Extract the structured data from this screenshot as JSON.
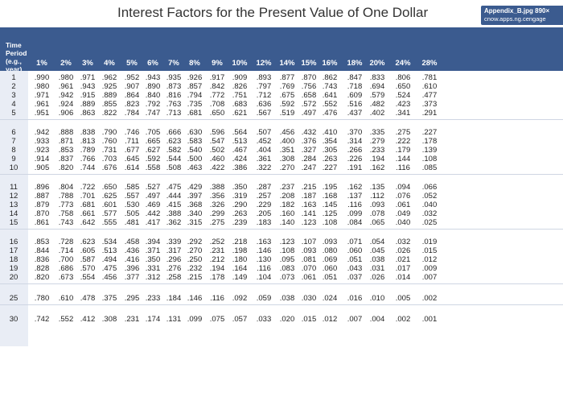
{
  "header": {
    "title": "Interest Factors for the Present Value of One Dollar",
    "badge_line1": "Appendix_B.jpg 890×",
    "badge_line2": "cnow.apps.ng.cengage",
    "period_label": "Time Period (e.g., year)"
  },
  "rates": [
    "1%",
    "2%",
    "3%",
    "4%",
    "5%",
    "6%",
    "7%",
    "8%",
    "9%",
    "10%",
    "12%",
    "14%",
    "15%",
    "16%",
    "18%",
    "20%",
    "24%",
    "28%"
  ],
  "rows": [
    {
      "period": "1",
      "values": [
        ".990",
        ".980",
        ".971",
        ".962",
        ".952",
        ".943",
        ".935",
        ".926",
        ".917",
        ".909",
        ".893",
        ".877",
        ".870",
        ".862",
        ".847",
        ".833",
        ".806",
        ".781"
      ]
    },
    {
      "period": "2",
      "values": [
        ".980",
        ".961",
        ".943",
        ".925",
        ".907",
        ".890",
        ".873",
        ".857",
        ".842",
        ".826",
        ".797",
        ".769",
        ".756",
        ".743",
        ".718",
        ".694",
        ".650",
        ".610"
      ]
    },
    {
      "period": "3",
      "values": [
        ".971",
        ".942",
        ".915",
        ".889",
        ".864",
        ".840",
        ".816",
        ".794",
        ".772",
        ".751",
        ".712",
        ".675",
        ".658",
        ".641",
        ".609",
        ".579",
        ".524",
        ".477"
      ]
    },
    {
      "period": "4",
      "values": [
        ".961",
        ".924",
        ".889",
        ".855",
        ".823",
        ".792",
        ".763",
        ".735",
        ".708",
        ".683",
        ".636",
        ".592",
        ".572",
        ".552",
        ".516",
        ".482",
        ".423",
        ".373"
      ]
    },
    {
      "period": "5",
      "values": [
        ".951",
        ".906",
        ".863",
        ".822",
        ".784",
        ".747",
        ".713",
        ".681",
        ".650",
        ".621",
        ".567",
        ".519",
        ".497",
        ".476",
        ".437",
        ".402",
        ".341",
        ".291"
      ]
    },
    {
      "period": "6",
      "values": [
        ".942",
        ".888",
        ".838",
        ".790",
        ".746",
        ".705",
        ".666",
        ".630",
        ".596",
        ".564",
        ".507",
        ".456",
        ".432",
        ".410",
        ".370",
        ".335",
        ".275",
        ".227"
      ]
    },
    {
      "period": "7",
      "values": [
        ".933",
        ".871",
        ".813",
        ".760",
        ".711",
        ".665",
        ".623",
        ".583",
        ".547",
        ".513",
        ".452",
        ".400",
        ".376",
        ".354",
        ".314",
        ".279",
        ".222",
        ".178"
      ]
    },
    {
      "period": "8",
      "values": [
        ".923",
        ".853",
        ".789",
        ".731",
        ".677",
        ".627",
        ".582",
        ".540",
        ".502",
        ".467",
        ".404",
        ".351",
        ".327",
        ".305",
        ".266",
        ".233",
        ".179",
        ".139"
      ]
    },
    {
      "period": "9",
      "values": [
        ".914",
        ".837",
        ".766",
        ".703",
        ".645",
        ".592",
        ".544",
        ".500",
        ".460",
        ".424",
        ".361",
        ".308",
        ".284",
        ".263",
        ".226",
        ".194",
        ".144",
        ".108"
      ]
    },
    {
      "period": "10",
      "values": [
        ".905",
        ".820",
        ".744",
        ".676",
        ".614",
        ".558",
        ".508",
        ".463",
        ".422",
        ".386",
        ".322",
        ".270",
        ".247",
        ".227",
        ".191",
        ".162",
        ".116",
        ".085"
      ]
    },
    {
      "period": "11",
      "values": [
        ".896",
        ".804",
        ".722",
        ".650",
        ".585",
        ".527",
        ".475",
        ".429",
        ".388",
        ".350",
        ".287",
        ".237",
        ".215",
        ".195",
        ".162",
        ".135",
        ".094",
        ".066"
      ]
    },
    {
      "period": "12",
      "values": [
        ".887",
        ".788",
        ".701",
        ".625",
        ".557",
        ".497",
        ".444",
        ".397",
        ".356",
        ".319",
        ".257",
        ".208",
        ".187",
        ".168",
        ".137",
        ".112",
        ".076",
        ".052"
      ]
    },
    {
      "period": "13",
      "values": [
        ".879",
        ".773",
        ".681",
        ".601",
        ".530",
        ".469",
        ".415",
        ".368",
        ".326",
        ".290",
        ".229",
        ".182",
        ".163",
        ".145",
        ".116",
        ".093",
        ".061",
        ".040"
      ]
    },
    {
      "period": "14",
      "values": [
        ".870",
        ".758",
        ".661",
        ".577",
        ".505",
        ".442",
        ".388",
        ".340",
        ".299",
        ".263",
        ".205",
        ".160",
        ".141",
        ".125",
        ".099",
        ".078",
        ".049",
        ".032"
      ]
    },
    {
      "period": "15",
      "values": [
        ".861",
        ".743",
        ".642",
        ".555",
        ".481",
        ".417",
        ".362",
        ".315",
        ".275",
        ".239",
        ".183",
        ".140",
        ".123",
        ".108",
        ".084",
        ".065",
        ".040",
        ".025"
      ]
    },
    {
      "period": "16",
      "values": [
        ".853",
        ".728",
        ".623",
        ".534",
        ".458",
        ".394",
        ".339",
        ".292",
        ".252",
        ".218",
        ".163",
        ".123",
        ".107",
        ".093",
        ".071",
        ".054",
        ".032",
        ".019"
      ]
    },
    {
      "period": "17",
      "values": [
        ".844",
        ".714",
        ".605",
        ".513",
        ".436",
        ".371",
        ".317",
        ".270",
        ".231",
        ".198",
        ".146",
        ".108",
        ".093",
        ".080",
        ".060",
        ".045",
        ".026",
        ".015"
      ]
    },
    {
      "period": "18",
      "values": [
        ".836",
        ".700",
        ".587",
        ".494",
        ".416",
        ".350",
        ".296",
        ".250",
        ".212",
        ".180",
        ".130",
        ".095",
        ".081",
        ".069",
        ".051",
        ".038",
        ".021",
        ".012"
      ]
    },
    {
      "period": "19",
      "values": [
        ".828",
        ".686",
        ".570",
        ".475",
        ".396",
        ".331",
        ".276",
        ".232",
        ".194",
        ".164",
        ".116",
        ".083",
        ".070",
        ".060",
        ".043",
        ".031",
        ".017",
        ".009"
      ]
    },
    {
      "period": "20",
      "values": [
        ".820",
        ".673",
        ".554",
        ".456",
        ".377",
        ".312",
        ".258",
        ".215",
        ".178",
        ".149",
        ".104",
        ".073",
        ".061",
        ".051",
        ".037",
        ".026",
        ".014",
        ".007"
      ]
    },
    {
      "period": "25",
      "values": [
        ".780",
        ".610",
        ".478",
        ".375",
        ".295",
        ".233",
        ".184",
        ".146",
        ".116",
        ".092",
        ".059",
        ".038",
        ".030",
        ".024",
        ".016",
        ".010",
        ".005",
        ".002"
      ]
    },
    {
      "period": "30",
      "values": [
        ".742",
        ".552",
        ".412",
        ".308",
        ".231",
        ".174",
        ".131",
        ".099",
        ".075",
        ".057",
        ".033",
        ".020",
        ".015",
        ".012",
        ".007",
        ".004",
        ".002",
        ".001"
      ]
    }
  ]
}
